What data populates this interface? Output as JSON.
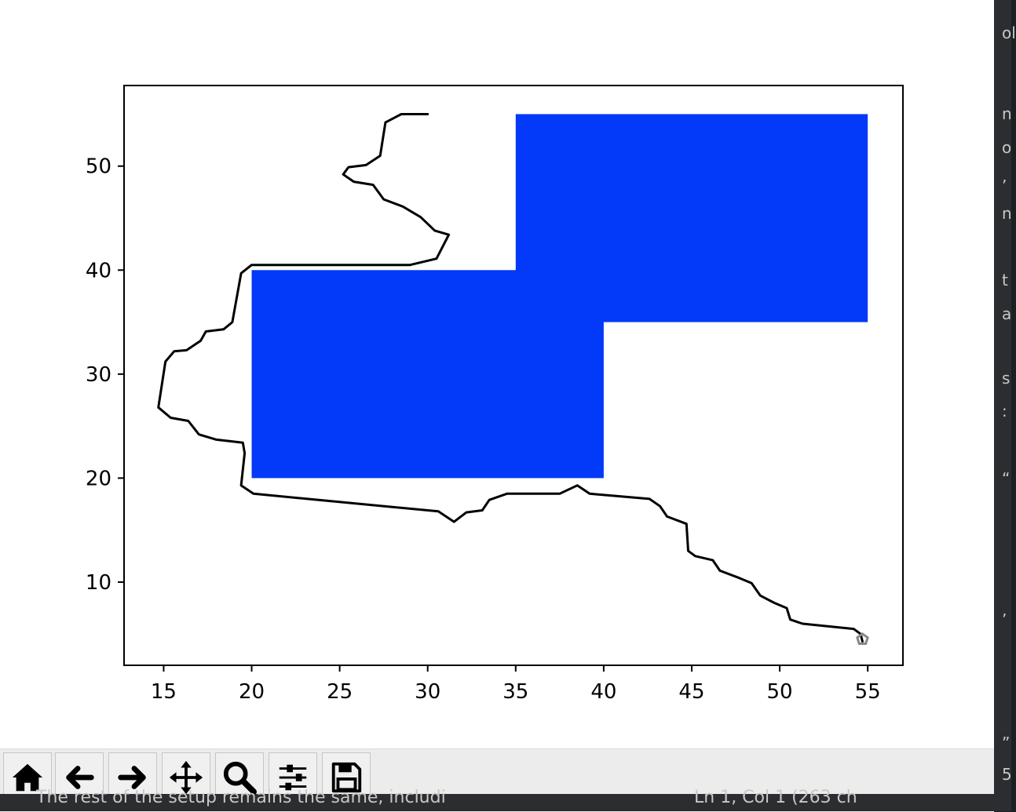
{
  "chart_data": {
    "type": "area",
    "xlim": [
      12.75,
      57.0
    ],
    "ylim": [
      2.0,
      57.75
    ],
    "xticks": [
      15,
      20,
      25,
      30,
      35,
      40,
      45,
      50,
      55
    ],
    "yticks": [
      10,
      20,
      30,
      40,
      50
    ],
    "x_tick_labels": [
      "15",
      "20",
      "25",
      "30",
      "35",
      "40",
      "45",
      "50",
      "55"
    ],
    "y_tick_labels": [
      "10",
      "20",
      "30",
      "40",
      "50"
    ],
    "grid": false,
    "rectangles": [
      {
        "x0": 20,
        "y0": 20,
        "x1": 40,
        "y1": 40,
        "color": "#0339f8"
      },
      {
        "x0": 35,
        "y0": 35,
        "x1": 55,
        "y1": 55,
        "color": "#0339f8"
      }
    ],
    "path_color": "#000000",
    "path": [
      [
        30.0,
        55.0
      ],
      [
        28.5,
        55.0
      ],
      [
        27.6,
        54.2
      ],
      [
        27.3,
        51.0
      ],
      [
        26.5,
        50.1
      ],
      [
        25.5,
        49.9
      ],
      [
        25.2,
        49.2
      ],
      [
        25.8,
        48.5
      ],
      [
        26.9,
        48.2
      ],
      [
        27.5,
        46.8
      ],
      [
        28.6,
        46.1
      ],
      [
        29.6,
        45.1
      ],
      [
        30.4,
        43.8
      ],
      [
        31.2,
        43.4
      ],
      [
        30.5,
        41.1
      ],
      [
        29.0,
        40.5
      ],
      [
        20.0,
        40.5
      ],
      [
        19.4,
        39.7
      ],
      [
        18.9,
        35.0
      ],
      [
        18.4,
        34.3
      ],
      [
        17.4,
        34.1
      ],
      [
        17.1,
        33.2
      ],
      [
        16.3,
        32.3
      ],
      [
        15.6,
        32.2
      ],
      [
        15.1,
        31.2
      ],
      [
        14.7,
        26.8
      ],
      [
        15.4,
        25.8
      ],
      [
        16.4,
        25.5
      ],
      [
        17.0,
        24.2
      ],
      [
        18.0,
        23.7
      ],
      [
        19.5,
        23.4
      ],
      [
        19.6,
        22.4
      ],
      [
        19.4,
        19.3
      ],
      [
        20.1,
        18.5
      ],
      [
        30.6,
        16.8
      ],
      [
        31.5,
        15.8
      ],
      [
        32.2,
        16.7
      ],
      [
        33.1,
        16.9
      ],
      [
        33.5,
        17.9
      ],
      [
        34.5,
        18.5
      ],
      [
        37.5,
        18.5
      ],
      [
        38.5,
        19.3
      ],
      [
        39.2,
        18.5
      ],
      [
        42.6,
        18.0
      ],
      [
        43.2,
        17.3
      ],
      [
        43.6,
        16.3
      ],
      [
        44.7,
        15.6
      ],
      [
        44.8,
        13.0
      ],
      [
        45.2,
        12.5
      ],
      [
        46.2,
        12.1
      ],
      [
        46.6,
        11.1
      ],
      [
        47.7,
        10.4
      ],
      [
        48.4,
        9.9
      ],
      [
        48.9,
        8.7
      ],
      [
        49.7,
        8.0
      ],
      [
        50.4,
        7.5
      ],
      [
        50.6,
        6.4
      ],
      [
        51.3,
        6.0
      ],
      [
        54.2,
        5.5
      ],
      [
        54.6,
        5.0
      ],
      [
        54.7,
        4.3
      ]
    ],
    "end_marker": {
      "x": 54.7,
      "y": 4.5,
      "shape": "pentagon",
      "color": "#888888"
    }
  },
  "toolbar": {
    "buttons": [
      {
        "name": "home",
        "icon": "home-icon"
      },
      {
        "name": "back",
        "icon": "arrow-left-icon"
      },
      {
        "name": "forward",
        "icon": "arrow-right-icon"
      },
      {
        "name": "pan",
        "icon": "move-icon"
      },
      {
        "name": "zoom",
        "icon": "magnifier-icon"
      },
      {
        "name": "configure-subplots",
        "icon": "sliders-icon"
      },
      {
        "name": "save",
        "icon": "floppy-disk-icon"
      }
    ]
  },
  "background": {
    "right_fragments": [
      "ol",
      "n",
      "o",
      "’",
      "n",
      "t",
      "a",
      "s",
      ":",
      "“",
      "’",
      "”",
      "5"
    ],
    "bottom_left_text": "The rest of the setup remains the same, includi",
    "bottom_right_text": "Ln 1, Col 1 (263 ch"
  },
  "colors": {
    "fill": "#0339f8",
    "toolbar_bg": "#ececec",
    "editor_bg": "#2b2d30"
  }
}
